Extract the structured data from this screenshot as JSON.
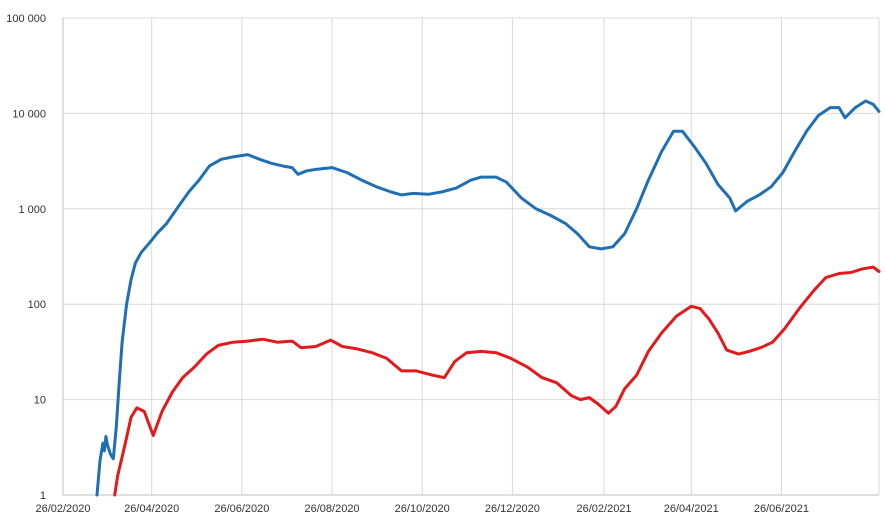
{
  "chart_data": {
    "type": "line",
    "title": "",
    "xlabel": "",
    "ylabel": "",
    "y_scale": "log",
    "ylim": [
      1,
      100000
    ],
    "y_ticks": [
      {
        "value": 1,
        "label": "1"
      },
      {
        "value": 10,
        "label": "10"
      },
      {
        "value": 100,
        "label": "100"
      },
      {
        "value": 1000,
        "label": "1 000"
      },
      {
        "value": 10000,
        "label": "10 000"
      },
      {
        "value": 100000,
        "label": "100 000"
      }
    ],
    "xlim": [
      "2020-02-26",
      "2021-08-31"
    ],
    "x_ticks": [
      {
        "value": "2020-02-26",
        "label": "26/02/2020"
      },
      {
        "value": "2020-04-26",
        "label": "26/04/2020"
      },
      {
        "value": "2020-06-26",
        "label": "26/06/2020"
      },
      {
        "value": "2020-08-26",
        "label": "26/08/2020"
      },
      {
        "value": "2020-10-26",
        "label": "26/10/2020"
      },
      {
        "value": "2020-12-26",
        "label": "26/12/2020"
      },
      {
        "value": "2021-02-26",
        "label": "26/02/2021"
      },
      {
        "value": "2021-04-26",
        "label": "26/04/2021"
      },
      {
        "value": "2021-06-26",
        "label": "26/06/2021"
      }
    ],
    "grid": true,
    "legend": "none",
    "series": [
      {
        "color": "#1f6fb5",
        "points": [
          [
            "2020-03-20",
            1
          ],
          [
            "2020-03-22",
            2.3
          ],
          [
            "2020-03-24",
            3.5
          ],
          [
            "2020-03-25",
            2.9
          ],
          [
            "2020-03-26",
            4.1
          ],
          [
            "2020-03-27",
            3.4
          ],
          [
            "2020-03-29",
            2.7
          ],
          [
            "2020-03-31",
            2.4
          ],
          [
            "2020-04-02",
            5
          ],
          [
            "2020-04-04",
            15
          ],
          [
            "2020-04-06",
            40
          ],
          [
            "2020-04-09",
            100
          ],
          [
            "2020-04-12",
            180
          ],
          [
            "2020-04-15",
            270
          ],
          [
            "2020-04-19",
            350
          ],
          [
            "2020-04-24",
            430
          ],
          [
            "2020-04-30",
            560
          ],
          [
            "2020-05-06",
            700
          ],
          [
            "2020-05-13",
            1000
          ],
          [
            "2020-05-21",
            1500
          ],
          [
            "2020-05-28",
            2000
          ],
          [
            "2020-06-04",
            2800
          ],
          [
            "2020-06-12",
            3300
          ],
          [
            "2020-06-20",
            3500
          ],
          [
            "2020-06-30",
            3700
          ],
          [
            "2020-07-08",
            3300
          ],
          [
            "2020-07-16",
            3000
          ],
          [
            "2020-07-24",
            2800
          ],
          [
            "2020-07-30",
            2700
          ],
          [
            "2020-08-03",
            2300
          ],
          [
            "2020-08-09",
            2500
          ],
          [
            "2020-08-16",
            2600
          ],
          [
            "2020-08-26",
            2700
          ],
          [
            "2020-09-05",
            2400
          ],
          [
            "2020-09-15",
            2000
          ],
          [
            "2020-09-25",
            1700
          ],
          [
            "2020-10-05",
            1500
          ],
          [
            "2020-10-12",
            1400
          ],
          [
            "2020-10-20",
            1450
          ],
          [
            "2020-10-30",
            1420
          ],
          [
            "2020-11-08",
            1500
          ],
          [
            "2020-11-18",
            1650
          ],
          [
            "2020-11-28",
            2000
          ],
          [
            "2020-12-05",
            2150
          ],
          [
            "2020-12-15",
            2150
          ],
          [
            "2020-12-22",
            1900
          ],
          [
            "2021-01-01",
            1300
          ],
          [
            "2021-01-11",
            1000
          ],
          [
            "2021-01-21",
            850
          ],
          [
            "2021-01-31",
            700
          ],
          [
            "2021-02-08",
            550
          ],
          [
            "2021-02-16",
            400
          ],
          [
            "2021-02-24",
            380
          ],
          [
            "2021-03-04",
            400
          ],
          [
            "2021-03-12",
            550
          ],
          [
            "2021-03-20",
            1000
          ],
          [
            "2021-03-28",
            2000
          ],
          [
            "2021-04-06",
            4000
          ],
          [
            "2021-04-14",
            6500
          ],
          [
            "2021-04-20",
            6500
          ],
          [
            "2021-04-28",
            4500
          ],
          [
            "2021-05-06",
            3000
          ],
          [
            "2021-05-14",
            1800
          ],
          [
            "2021-05-22",
            1300
          ],
          [
            "2021-05-26",
            950
          ],
          [
            "2021-06-03",
            1200
          ],
          [
            "2021-06-11",
            1400
          ],
          [
            "2021-06-19",
            1700
          ],
          [
            "2021-06-27",
            2400
          ],
          [
            "2021-07-05",
            4000
          ],
          [
            "2021-07-13",
            6500
          ],
          [
            "2021-07-21",
            9500
          ],
          [
            "2021-07-29",
            11500
          ],
          [
            "2021-08-04",
            11500
          ],
          [
            "2021-08-08",
            9000
          ],
          [
            "2021-08-15",
            11500
          ],
          [
            "2021-08-22",
            13500
          ],
          [
            "2021-08-27",
            12500
          ],
          [
            "2021-08-31",
            10500
          ]
        ]
      },
      {
        "color": "#e31a1c",
        "points": [
          [
            "2020-04-01",
            1
          ],
          [
            "2020-04-03",
            1.6
          ],
          [
            "2020-04-06",
            2.5
          ],
          [
            "2020-04-09",
            4
          ],
          [
            "2020-04-12",
            6.5
          ],
          [
            "2020-04-16",
            8.2
          ],
          [
            "2020-04-21",
            7.5
          ],
          [
            "2020-04-27",
            4.2
          ],
          [
            "2020-05-03",
            7.5
          ],
          [
            "2020-05-10",
            12
          ],
          [
            "2020-05-17",
            17
          ],
          [
            "2020-05-25",
            22
          ],
          [
            "2020-06-02",
            30
          ],
          [
            "2020-06-10",
            37
          ],
          [
            "2020-06-20",
            40
          ],
          [
            "2020-06-30",
            41
          ],
          [
            "2020-07-10",
            43
          ],
          [
            "2020-07-20",
            40
          ],
          [
            "2020-07-30",
            41
          ],
          [
            "2020-08-05",
            35
          ],
          [
            "2020-08-15",
            36
          ],
          [
            "2020-08-25",
            42
          ],
          [
            "2020-09-02",
            36
          ],
          [
            "2020-09-12",
            34
          ],
          [
            "2020-09-22",
            31
          ],
          [
            "2020-10-02",
            27
          ],
          [
            "2020-10-12",
            20
          ],
          [
            "2020-10-22",
            20
          ],
          [
            "2020-11-02",
            18
          ],
          [
            "2020-11-10",
            17
          ],
          [
            "2020-11-17",
            25
          ],
          [
            "2020-11-25",
            31
          ],
          [
            "2020-12-05",
            32
          ],
          [
            "2020-12-15",
            31
          ],
          [
            "2020-12-25",
            27
          ],
          [
            "2021-01-05",
            22
          ],
          [
            "2021-01-15",
            17
          ],
          [
            "2021-01-25",
            15
          ],
          [
            "2021-02-04",
            11
          ],
          [
            "2021-02-10",
            10
          ],
          [
            "2021-02-16",
            10.5
          ],
          [
            "2021-02-22",
            9
          ],
          [
            "2021-03-01",
            7.2
          ],
          [
            "2021-03-06",
            8.5
          ],
          [
            "2021-03-12",
            13
          ],
          [
            "2021-03-20",
            18
          ],
          [
            "2021-03-28",
            32
          ],
          [
            "2021-04-06",
            50
          ],
          [
            "2021-04-16",
            75
          ],
          [
            "2021-04-26",
            95
          ],
          [
            "2021-05-02",
            90
          ],
          [
            "2021-05-08",
            70
          ],
          [
            "2021-05-14",
            50
          ],
          [
            "2021-05-20",
            33
          ],
          [
            "2021-05-28",
            30
          ],
          [
            "2021-06-04",
            32
          ],
          [
            "2021-06-12",
            35
          ],
          [
            "2021-06-20",
            40
          ],
          [
            "2021-06-28",
            55
          ],
          [
            "2021-07-08",
            90
          ],
          [
            "2021-07-18",
            140
          ],
          [
            "2021-07-26",
            190
          ],
          [
            "2021-08-04",
            210
          ],
          [
            "2021-08-12",
            215
          ],
          [
            "2021-08-20",
            235
          ],
          [
            "2021-08-27",
            245
          ],
          [
            "2021-08-31",
            220
          ]
        ]
      }
    ]
  }
}
